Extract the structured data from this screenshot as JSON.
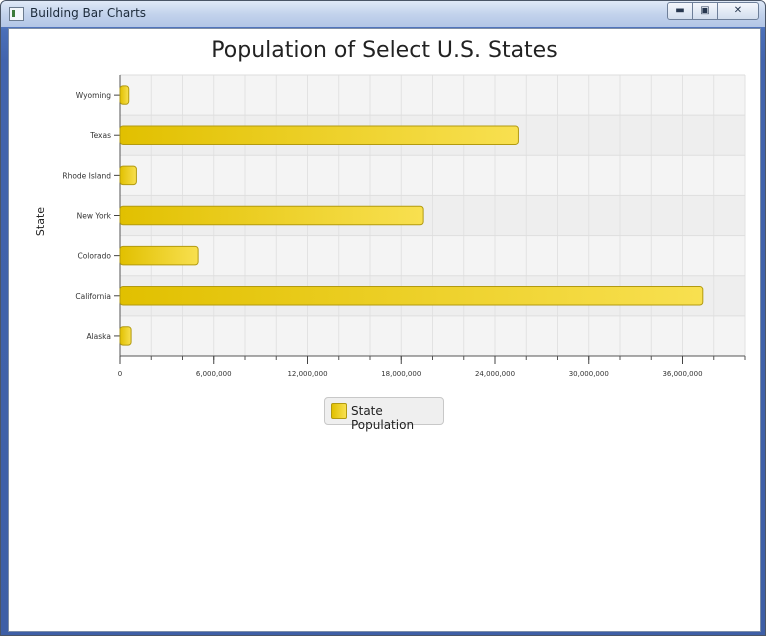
{
  "window": {
    "title": "Building Bar Charts",
    "minimize_icon": "minimize-icon",
    "maximize_icon": "maximize-icon",
    "close_icon": "close-icon"
  },
  "chart_data": {
    "type": "bar",
    "orientation": "horizontal",
    "title": "Population of Select U.S. States",
    "xlabel": "",
    "ylabel": "State",
    "categories": [
      "Alaska",
      "California",
      "Colorado",
      "New York",
      "Rhode Island",
      "Texas",
      "Wyoming"
    ],
    "series": [
      {
        "name": "State Population",
        "values": [
          710000,
          37300000,
          5000000,
          19400000,
          1050000,
          25500000,
          560000
        ]
      }
    ],
    "xlim": [
      0,
      40000000
    ],
    "xticks": [
      0,
      6000000,
      12000000,
      18000000,
      24000000,
      30000000,
      36000000
    ],
    "xtick_labels": [
      "0",
      "6,000,000",
      "12,000,000",
      "18,000,000",
      "24,000,000",
      "30,000,000",
      "36,000,000"
    ],
    "grid": true,
    "legend_position": "bottom",
    "colors": {
      "bar_start": "#e1c000",
      "bar_end": "#f8e050",
      "bar_border": "#b29a10",
      "plot_bg_a": "#f4f4f4",
      "plot_bg_b": "#eeeeee"
    }
  }
}
